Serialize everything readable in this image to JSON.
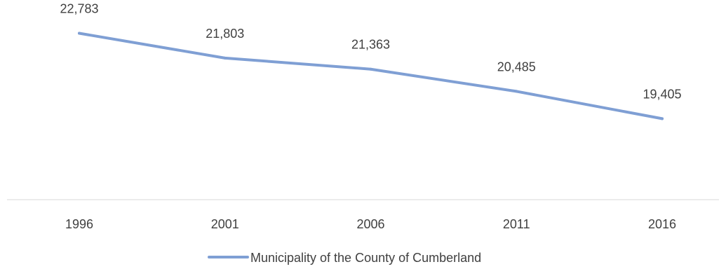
{
  "chart_data": {
    "type": "line",
    "categories": [
      "1996",
      "2001",
      "2006",
      "2011",
      "2016"
    ],
    "series": [
      {
        "name": "Municipality of the County of Cumberland",
        "values": [
          22783,
          21803,
          21363,
          20485,
          19405
        ],
        "labels": [
          "22,783",
          "21,803",
          "21,363",
          "20,485",
          "19,405"
        ],
        "color": "#7f9fd4"
      }
    ],
    "ylim": [
      16200,
      24100
    ],
    "grid": false,
    "legend_position": "bottom"
  }
}
